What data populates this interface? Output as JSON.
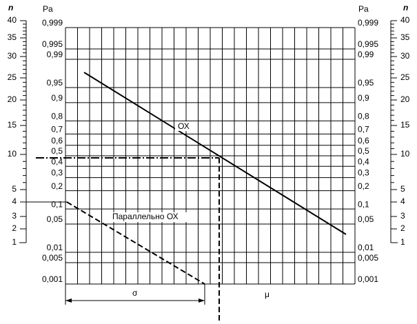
{
  "left_axis": {
    "title": "n",
    "labels": [
      "1",
      "2",
      "3",
      "4",
      "5",
      "10",
      "15",
      "20",
      "25",
      "30",
      "35",
      "40"
    ]
  },
  "right_axis": {
    "title": "n",
    "labels": [
      "1",
      "2",
      "3",
      "4",
      "5",
      "10",
      "15",
      "20",
      "25",
      "30",
      "35",
      "40"
    ]
  },
  "probability_title_left": "Pa",
  "probability_title_right": "Pa",
  "probability_labels": [
    "0,999",
    "0,995",
    "0,99",
    "0,95",
    "0,9",
    "0,8",
    "0,7",
    "0,6",
    "0,5",
    "0,4",
    "0,3",
    "0,2",
    "0,1",
    "0,05",
    "0,01",
    "0,005",
    "0,001"
  ],
  "annotations": {
    "line": "ОХ",
    "parallel": "Параллельно ОХ",
    "sigma": "σ",
    "mu": "μ"
  }
}
